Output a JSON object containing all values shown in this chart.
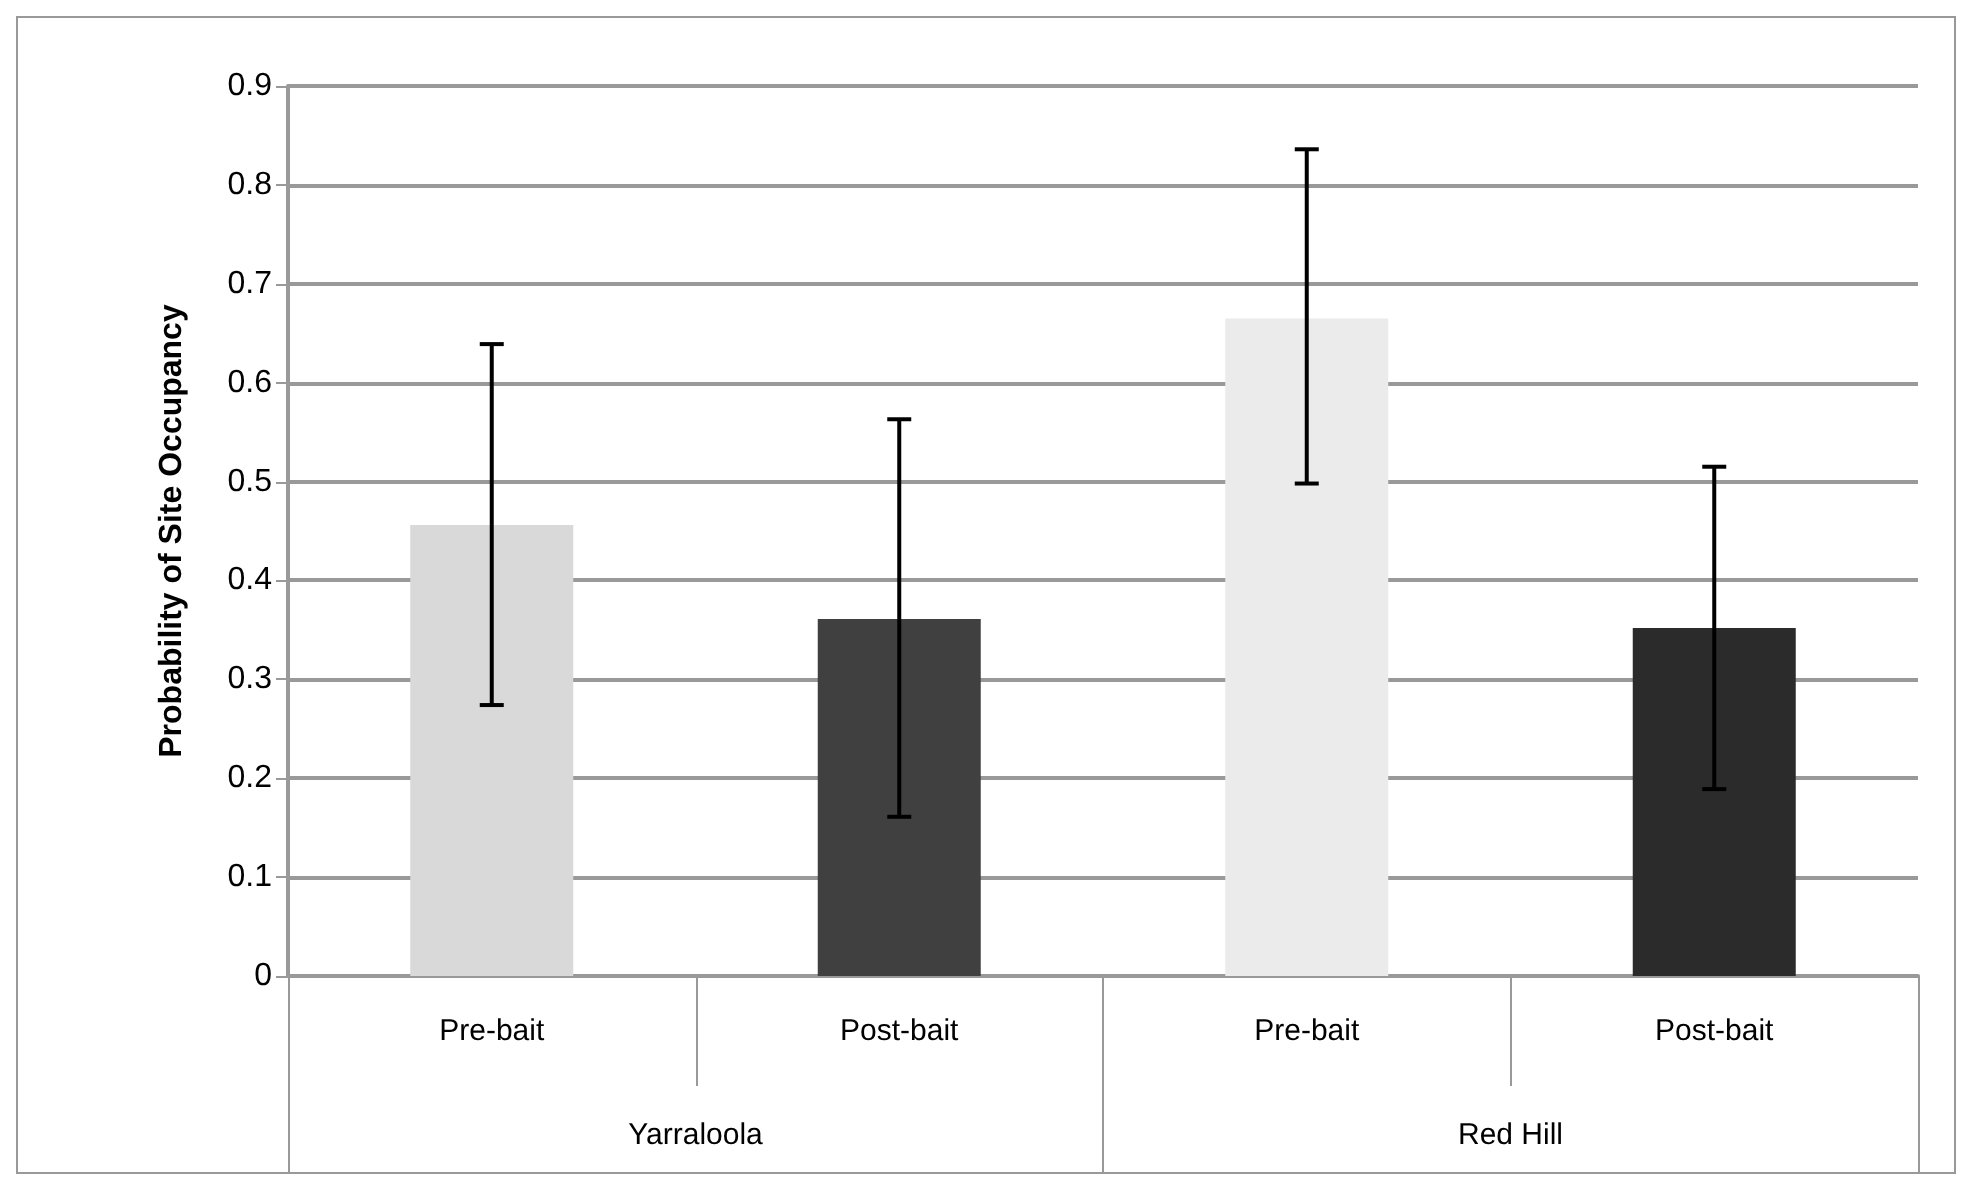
{
  "chart_data": {
    "type": "bar",
    "ylabel": "Probability of Site Occupancy",
    "categories": [
      "Pre-bait",
      "Post-bait",
      "Pre-bait",
      "Post-bait"
    ],
    "values": [
      0.456,
      0.361,
      0.665,
      0.352
    ],
    "colors": [
      "#d9d9d9",
      "#404040",
      "#ebebeb",
      "#2b2b2b"
    ],
    "errors": [
      [
        0.274,
        0.639
      ],
      [
        0.161,
        0.563
      ],
      [
        0.498,
        0.836
      ],
      [
        0.189,
        0.515
      ]
    ],
    "annotations": [
      "Yarraloola",
      "Red Hill"
    ],
    "ylim": [
      0,
      0.9
    ],
    "yticks": [
      0,
      0.1,
      0.2,
      0.3,
      0.4,
      0.5,
      0.6,
      0.7,
      0.8,
      0.9
    ],
    "grid": "y"
  }
}
